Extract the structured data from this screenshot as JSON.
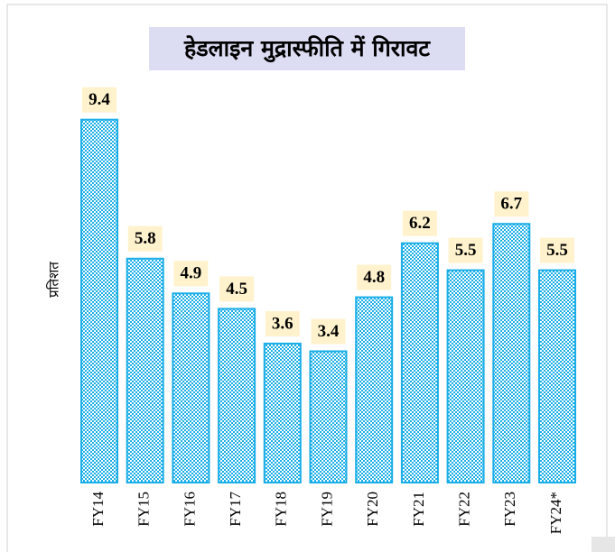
{
  "chart_data": {
    "type": "bar",
    "title": "हेडलाइन मुद्रास्फीति में गिरावट",
    "y_label": "प्रतिशत",
    "categories": [
      "FY14",
      "FY15",
      "FY16",
      "FY17",
      "FY18",
      "FY19",
      "FY20",
      "FY21",
      "FY22",
      "FY23",
      "FY24*"
    ],
    "values": [
      9.4,
      5.8,
      4.9,
      4.5,
      3.6,
      3.4,
      4.8,
      6.2,
      5.5,
      6.7,
      5.5
    ],
    "color": "#1aaee8",
    "ylim": [
      0,
      10
    ],
    "grid": false
  }
}
